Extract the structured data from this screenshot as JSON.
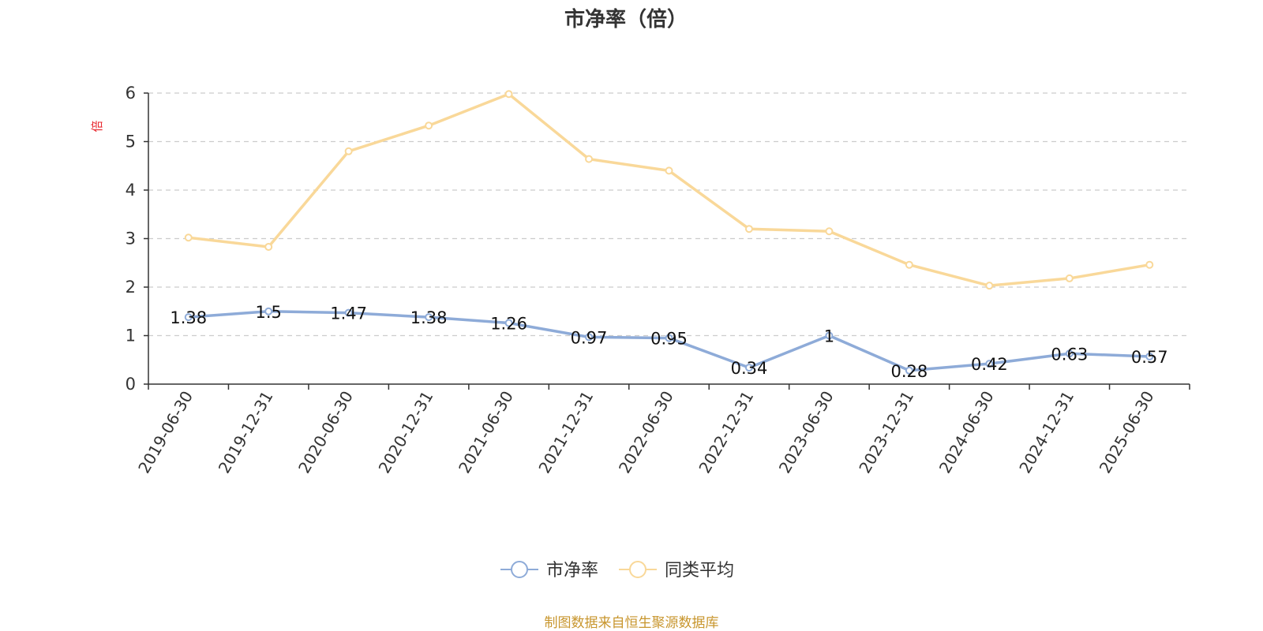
{
  "chart_data": {
    "type": "line",
    "title": "市净率（倍）",
    "ylabel": "倍",
    "xlabel": "",
    "ylim": [
      0,
      6
    ],
    "yticks": [
      "0",
      "1",
      "2",
      "3",
      "4",
      "5",
      "6"
    ],
    "grid": true,
    "legend_position": "bottom-center",
    "categories": [
      "2019-06-30",
      "2019-12-31",
      "2020-06-30",
      "2020-12-31",
      "2021-06-30",
      "2021-12-31",
      "2022-06-30",
      "2022-12-31",
      "2023-06-30",
      "2023-12-31",
      "2024-06-30",
      "2024-12-31",
      "2025-06-30"
    ],
    "series": [
      {
        "name": "市净率",
        "color": "#8eabd8",
        "values": [
          1.38,
          1.5,
          1.47,
          1.38,
          1.26,
          0.97,
          0.95,
          0.34,
          1,
          0.28,
          0.42,
          0.63,
          0.57
        ],
        "labels": [
          "1.38",
          "1.5",
          "1.47",
          "1.38",
          "1.26",
          "0.97",
          "0.95",
          "0.34",
          "1",
          "0.28",
          "0.42",
          "0.63",
          "0.57"
        ]
      },
      {
        "name": "同类平均",
        "color": "#f9d899",
        "values": [
          3.02,
          2.83,
          4.8,
          5.33,
          5.98,
          4.64,
          4.4,
          3.2,
          3.15,
          2.46,
          2.03,
          2.18,
          2.46
        ]
      }
    ]
  },
  "source_note": "制图数据来自恒生聚源数据库",
  "colors": {
    "unit_label": "#e8262d",
    "source_note": "#c8962e",
    "axis": "#333333",
    "grid": "#cccccc"
  }
}
